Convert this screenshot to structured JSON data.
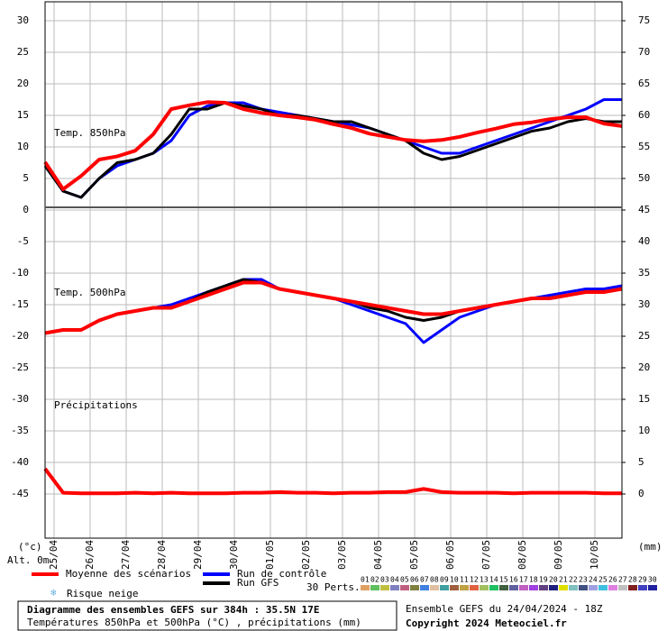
{
  "chart_data": {
    "type": "line",
    "panel_labels": [
      "Temp. 850hPa",
      "Temp. 500hPa",
      "Précipitations"
    ],
    "y_unit_label": "(°c)",
    "y2_unit_label": "(mm)",
    "altitude_label": "Alt. 0m",
    "title": "Diagramme des ensembles GEFS sur 384h : 35.5N 17E",
    "subtitle": "Températures 850hPa et 500hPa (°C) , précipitations (mm)",
    "run_label": "Ensemble GEFS du 24/04/2024 - 18Z",
    "copyright": "Copyright 2024 Meteociel.fr",
    "snow_risk_label": "Risque neige",
    "xlim": [
      0,
      384
    ],
    "xticks": [
      {
        "value": 6,
        "label": "25/04"
      },
      {
        "value": 30,
        "label": "26/04"
      },
      {
        "value": 54,
        "label": "27/04"
      },
      {
        "value": 78,
        "label": "28/04"
      },
      {
        "value": 102,
        "label": "29/04"
      },
      {
        "value": 126,
        "label": "30/04"
      },
      {
        "value": 150,
        "label": "01/05"
      },
      {
        "value": 174,
        "label": "02/05"
      },
      {
        "value": 198,
        "label": "03/05"
      },
      {
        "value": 222,
        "label": "04/05"
      },
      {
        "value": 246,
        "label": "05/05"
      },
      {
        "value": 270,
        "label": "06/05"
      },
      {
        "value": 294,
        "label": "07/05"
      },
      {
        "value": 318,
        "label": "08/05"
      },
      {
        "value": 342,
        "label": "09/05"
      },
      {
        "value": 366,
        "label": "10/05"
      }
    ],
    "ylim": [
      -52,
      33
    ],
    "yticks": [
      30,
      25,
      20,
      15,
      10,
      5,
      0,
      -5,
      -10,
      -15,
      -20,
      -25,
      -30,
      -35,
      -40,
      -45
    ],
    "y2lim": [
      -7,
      78
    ],
    "y2ticks": [
      75,
      70,
      65,
      60,
      55,
      50,
      45,
      40,
      35,
      30,
      25,
      20,
      15,
      10,
      5,
      0
    ],
    "grid": true,
    "x": [
      0,
      12,
      24,
      36,
      48,
      60,
      72,
      84,
      96,
      108,
      120,
      132,
      144,
      156,
      168,
      180,
      192,
      204,
      216,
      228,
      240,
      252,
      264,
      276,
      288,
      300,
      312,
      324,
      336,
      348,
      360,
      372,
      384
    ],
    "series": [
      {
        "name": "Run de contrôle",
        "color": "#0000ff",
        "values": [
          7,
          3,
          2,
          5,
          7,
          8,
          9,
          11,
          15,
          16.5,
          17,
          17,
          16,
          15.5,
          15,
          14.5,
          14,
          13.5,
          13,
          12,
          11,
          10,
          9,
          9,
          10,
          11,
          12,
          13,
          14,
          15,
          16,
          17.5,
          17.5
        ]
      },
      {
        "name": "Run GFS",
        "color": "#000000",
        "values": [
          7,
          3,
          2,
          5,
          7.5,
          8,
          9,
          12,
          16,
          16,
          17,
          16.5,
          16,
          15,
          15,
          14.5,
          14,
          14,
          13,
          12,
          11,
          9,
          8,
          8.5,
          9.5,
          10.5,
          11.5,
          12.5,
          13,
          14,
          14.5,
          14,
          14
        ]
      },
      {
        "name": "Moyenne des scénarios",
        "color": "#ff0000",
        "values": [
          7.6,
          3.3,
          5.4,
          8,
          8.5,
          9.4,
          12,
          16,
          16.6,
          17.1,
          17,
          16,
          15.4,
          15,
          14.7,
          14.3,
          13.6,
          13,
          12.1,
          11.6,
          11.1,
          10.9,
          11.1,
          11.6,
          12.3,
          12.9,
          13.6,
          13.9,
          14.4,
          14.7,
          14.7,
          13.7,
          13.3
        ]
      },
      {
        "color": "#0000ff",
        "values": [
          -19.5,
          -19,
          -19,
          -17.5,
          -16.5,
          -16,
          -15.5,
          -15,
          -14,
          -13,
          -12,
          -11,
          -11,
          -12.5,
          -13,
          -13.5,
          -14,
          -15,
          -16,
          -17,
          -18,
          -21,
          -19,
          -17,
          -16,
          -15,
          -14.5,
          -14,
          -13.5,
          -13,
          -12.5,
          -12.5,
          -12
        ]
      },
      {
        "color": "#000000",
        "values": [
          -19.5,
          -19,
          -19,
          -17.5,
          -16.5,
          -16,
          -15.5,
          -15.5,
          -14.5,
          -13,
          -12,
          -11,
          -11.5,
          -12.5,
          -13,
          -13.5,
          -14,
          -14.5,
          -15.5,
          -16,
          -17,
          -17.5,
          -17,
          -16,
          -15.5,
          -15,
          -14.5,
          -14,
          -14,
          -13.5,
          -13,
          -13,
          -12.5
        ]
      },
      {
        "color": "#ff0000",
        "values": [
          -19.5,
          -19,
          -19,
          -17.5,
          -16.5,
          -16,
          -15.5,
          -15.5,
          -14.5,
          -13.5,
          -12.5,
          -11.5,
          -11.5,
          -12.5,
          -13,
          -13.5,
          -14,
          -14.5,
          -15,
          -15.5,
          -16,
          -16.5,
          -16.5,
          -16,
          -15.5,
          -15,
          -14.5,
          -14,
          -14,
          -13.5,
          -13,
          -13,
          -12.5
        ]
      },
      {
        "color": "#ff0000",
        "axis": "y2",
        "values": [
          4,
          0.2,
          0.1,
          0.1,
          0.1,
          0.2,
          0.1,
          0.2,
          0.1,
          0.1,
          0.1,
          0.2,
          0.2,
          0.3,
          0.2,
          0.2,
          0.1,
          0.2,
          0.2,
          0.3,
          0.3,
          0.8,
          0.3,
          0.2,
          0.2,
          0.2,
          0.1,
          0.2,
          0.2,
          0.2,
          0.2,
          0.1,
          0.1
        ]
      }
    ],
    "perturbations": {
      "label": "30 Perts.",
      "members": [
        {
          "name": "01",
          "color": "#e0a060"
        },
        {
          "name": "02",
          "color": "#60c060"
        },
        {
          "name": "03",
          "color": "#c0c040"
        },
        {
          "name": "04",
          "color": "#8080c0"
        },
        {
          "name": "05",
          "color": "#c06080"
        },
        {
          "name": "06",
          "color": "#808040"
        },
        {
          "name": "07",
          "color": "#4080e0"
        },
        {
          "name": "08",
          "color": "#e0c0a0"
        },
        {
          "name": "09",
          "color": "#40a0a0"
        },
        {
          "name": "10",
          "color": "#a06040"
        },
        {
          "name": "11",
          "color": "#c0a040"
        },
        {
          "name": "12",
          "color": "#e06040"
        },
        {
          "name": "13",
          "color": "#a0c060"
        },
        {
          "name": "14",
          "color": "#20c060"
        },
        {
          "name": "15",
          "color": "#406040"
        },
        {
          "name": "16",
          "color": "#6060a0"
        },
        {
          "name": "17",
          "color": "#c060c0"
        },
        {
          "name": "18",
          "color": "#a040e0"
        },
        {
          "name": "19",
          "color": "#604080"
        },
        {
          "name": "20",
          "color": "#202080"
        },
        {
          "name": "21",
          "color": "#e0e000"
        },
        {
          "name": "22",
          "color": "#80c0c0"
        },
        {
          "name": "23",
          "color": "#405080"
        },
        {
          "name": "24",
          "color": "#a0a0e0"
        },
        {
          "name": "25",
          "color": "#40c0e0"
        },
        {
          "name": "26",
          "color": "#e080e0"
        },
        {
          "name": "27",
          "color": "#c0c0c0"
        },
        {
          "name": "28",
          "color": "#802020"
        },
        {
          "name": "29",
          "color": "#4040c0"
        },
        {
          "name": "30",
          "color": "#2020a0"
        }
      ]
    }
  }
}
